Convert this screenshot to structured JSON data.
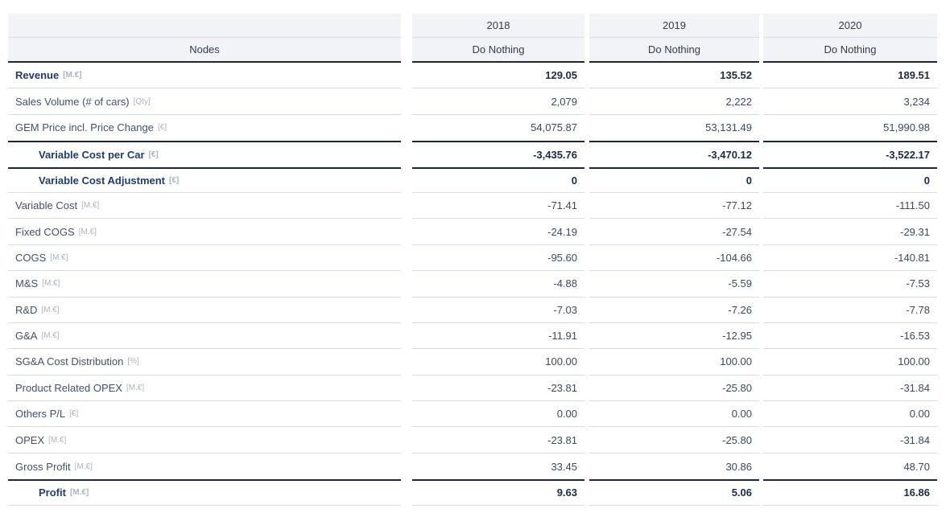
{
  "colors": {
    "header_bg": "#f2f3f6",
    "header_text": "#2e3c55",
    "border_light": "#d8dce3",
    "border_dark": "#1b2637",
    "text": "#42506b",
    "value_text": "#3a4861",
    "bold_label": "#1f3c6d",
    "bold_value": "#1c2b45",
    "unit": "#aab3c2"
  },
  "table": {
    "header": {
      "nodes_label": "Nodes",
      "years": [
        {
          "year": "2018",
          "scenario": "Do Nothing"
        },
        {
          "year": "2019",
          "scenario": "Do Nothing"
        },
        {
          "year": "2020",
          "scenario": "Do Nothing"
        }
      ]
    },
    "rows": [
      {
        "label": "Revenue",
        "unit": "[M.€]",
        "bold": true,
        "indent": false,
        "dark_top": false,
        "editable": false,
        "values": [
          "129.05",
          "135.52",
          "189.51"
        ]
      },
      {
        "label": "Sales Volume (# of cars)",
        "unit": "[Qty]",
        "bold": false,
        "indent": false,
        "dark_top": false,
        "editable": false,
        "values": [
          "2,079",
          "2,222",
          "3,234"
        ]
      },
      {
        "label": "GEM Price incl. Price Change",
        "unit": "[€]",
        "bold": false,
        "indent": false,
        "dark_top": false,
        "editable": false,
        "values": [
          "54,075.87",
          "53,131.49",
          "51,990.98"
        ]
      },
      {
        "label": "Variable Cost per Car",
        "unit": "[€]",
        "bold": true,
        "indent": true,
        "dark_top": true,
        "editable": true,
        "values": [
          "-3,435.76",
          "-3,470.12",
          "-3,522.17"
        ]
      },
      {
        "label": "Variable Cost Adjustment",
        "unit": "[€]",
        "bold": true,
        "indent": true,
        "dark_top": true,
        "editable": true,
        "values": [
          "0",
          "0",
          "0"
        ]
      },
      {
        "label": "Variable Cost",
        "unit": "[M.€]",
        "bold": false,
        "indent": false,
        "dark_top": false,
        "editable": false,
        "values": [
          "-71.41",
          "-77.12",
          "-111.50"
        ]
      },
      {
        "label": "Fixed COGS",
        "unit": "[M.€]",
        "bold": false,
        "indent": false,
        "dark_top": false,
        "editable": false,
        "values": [
          "-24.19",
          "-27.54",
          "-29.31"
        ]
      },
      {
        "label": "COGS",
        "unit": "[M.€]",
        "bold": false,
        "indent": false,
        "dark_top": false,
        "editable": false,
        "values": [
          "-95.60",
          "-104.66",
          "-140.81"
        ]
      },
      {
        "label": "M&S",
        "unit": "[M.€]",
        "bold": false,
        "indent": false,
        "dark_top": false,
        "editable": false,
        "values": [
          "-4.88",
          "-5.59",
          "-7.53"
        ]
      },
      {
        "label": "R&D",
        "unit": "[M.€]",
        "bold": false,
        "indent": false,
        "dark_top": false,
        "editable": false,
        "values": [
          "-7.03",
          "-7.26",
          "-7.78"
        ]
      },
      {
        "label": "G&A",
        "unit": "[M.€]",
        "bold": false,
        "indent": false,
        "dark_top": false,
        "editable": false,
        "values": [
          "-11.91",
          "-12.95",
          "-16.53"
        ]
      },
      {
        "label": "SG&A Cost Distribution",
        "unit": "[%]",
        "bold": false,
        "indent": false,
        "dark_top": false,
        "editable": false,
        "values": [
          "100.00",
          "100.00",
          "100.00"
        ]
      },
      {
        "label": "Product Related OPEX",
        "unit": "[M.€]",
        "bold": false,
        "indent": false,
        "dark_top": false,
        "editable": false,
        "values": [
          "-23.81",
          "-25.80",
          "-31.84"
        ]
      },
      {
        "label": "Others P/L",
        "unit": "[€]",
        "bold": false,
        "indent": false,
        "dark_top": false,
        "editable": false,
        "values": [
          "0.00",
          "0.00",
          "0.00"
        ]
      },
      {
        "label": "OPEX",
        "unit": "[M.€]",
        "bold": false,
        "indent": false,
        "dark_top": false,
        "editable": false,
        "values": [
          "-23.81",
          "-25.80",
          "-31.84"
        ]
      },
      {
        "label": "Gross Profit",
        "unit": "[M.€]",
        "bold": false,
        "indent": false,
        "dark_top": false,
        "editable": false,
        "values": [
          "33.45",
          "30.86",
          "48.70"
        ]
      },
      {
        "label": "Profit",
        "unit": "[M.€]",
        "bold": true,
        "indent": true,
        "dark_top": true,
        "editable": false,
        "values": [
          "9.63",
          "5.06",
          "16.86"
        ]
      }
    ]
  }
}
